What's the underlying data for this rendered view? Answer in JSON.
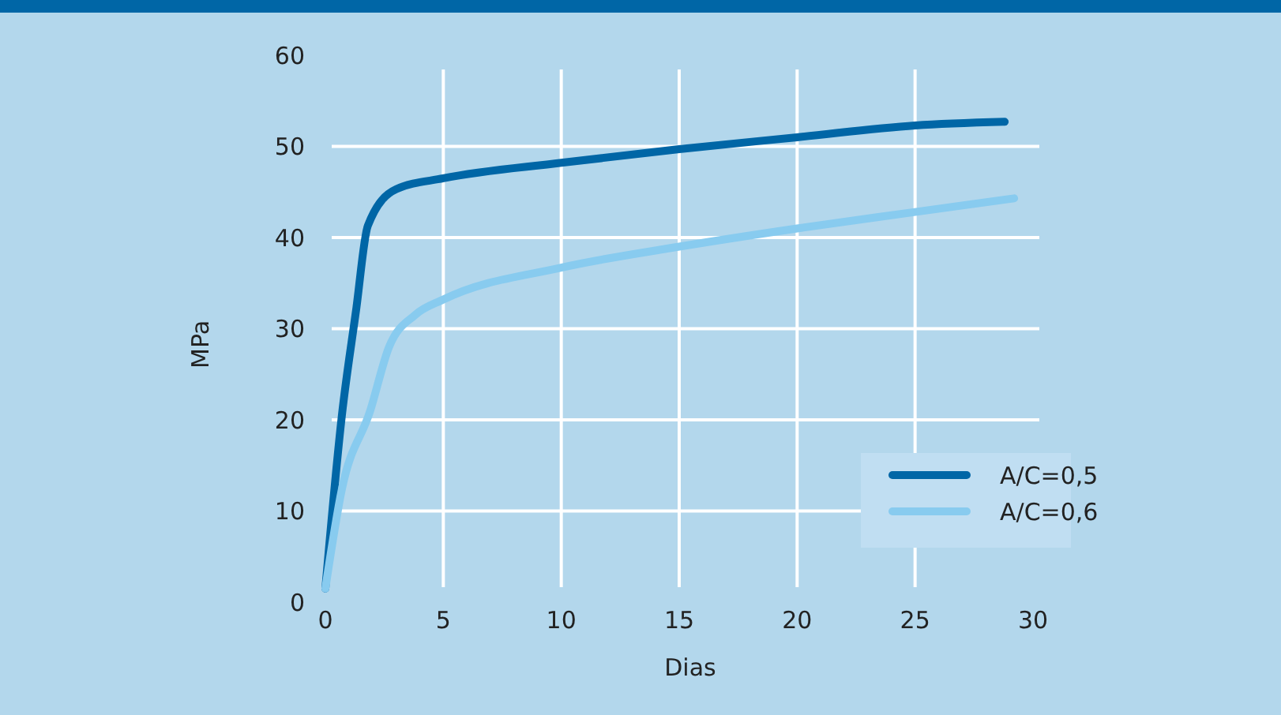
{
  "chart_data": {
    "type": "line",
    "xlabel": "Dias",
    "ylabel": "MPa",
    "xlim": [
      0,
      30
    ],
    "ylim": [
      0,
      60
    ],
    "xticks": [
      0,
      5,
      10,
      15,
      20,
      25,
      30
    ],
    "yticks": [
      0,
      10,
      20,
      30,
      40,
      50,
      60
    ],
    "grid": true,
    "legend": "bottom right",
    "line_style": "solid",
    "series": [
      {
        "name": "A/C=0,5",
        "color": "#0066a6",
        "x": [
          0,
          0.7,
          1.3,
          1.8,
          3,
          5,
          10,
          15,
          20,
          25,
          28.8
        ],
        "values": [
          1.5,
          20.5,
          32,
          41.3,
          45.3,
          46.5,
          48.2,
          49.7,
          51,
          52.3,
          52.7
        ]
      },
      {
        "name": "A/C=0,6",
        "color": "#88cbef",
        "x": [
          0,
          0.7,
          1.9,
          2.7,
          3.8,
          5,
          10,
          15,
          20,
          25,
          29.2
        ],
        "values": [
          1.5,
          12.4,
          21,
          28,
          31.5,
          33.2,
          36.7,
          39,
          41,
          42.8,
          44.3
        ]
      }
    ]
  }
}
